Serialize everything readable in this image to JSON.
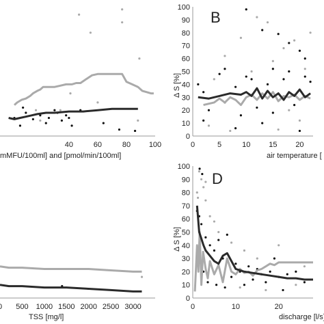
{
  "chart_data": [
    {
      "panel": "A",
      "type": "scatter",
      "panel_label": "",
      "xlabel": "mMFU/100ml] and [pmol/min/100ml]",
      "ylabel": "",
      "xticks": [
        40,
        60,
        80,
        100
      ],
      "xlim": [
        -8,
        100
      ],
      "ylim": [
        0,
        100
      ],
      "colors": {
        "gray": "#aaaaaa",
        "black": "#111111"
      },
      "series": [
        {
          "values_x": [
            2,
            4,
            7,
            10,
            13,
            15,
            18,
            20,
            22,
            26,
            30,
            34,
            38,
            42,
            45,
            48,
            52,
            56,
            60,
            63,
            66,
            70,
            74,
            77,
            80,
            84,
            88,
            91,
            94,
            97,
            99
          ],
          "values_y": [
            24,
            26,
            28,
            29,
            31,
            33,
            35,
            36,
            38,
            38,
            38,
            39,
            40,
            40,
            41,
            41,
            44,
            47,
            48,
            48,
            48,
            48,
            48,
            48,
            42,
            40,
            38,
            35,
            34,
            33,
            33
          ]
        },
        {
          "values_x": [
            -2,
            2,
            6,
            10,
            14,
            18,
            24,
            30,
            40,
            50,
            60,
            70,
            80,
            88
          ],
          "values_y": [
            14,
            13,
            14,
            15,
            16,
            17,
            18,
            18,
            19,
            19,
            20,
            21,
            21,
            21
          ]
        }
      ],
      "scatter_gray": [
        [
          55,
          80
        ],
        [
          47,
          94
        ],
        [
          77,
          98
        ],
        [
          77,
          88
        ],
        [
          89,
          60
        ],
        [
          41,
          33
        ],
        [
          60,
          26
        ],
        [
          34,
          20
        ],
        [
          88,
          12
        ],
        [
          17,
          20
        ],
        [
          20,
          12
        ]
      ],
      "scatter_black": [
        [
          2,
          14
        ],
        [
          6,
          8
        ],
        [
          8,
          22
        ],
        [
          10,
          18
        ],
        [
          15,
          13
        ],
        [
          20,
          16
        ],
        [
          24,
          10
        ],
        [
          26,
          14
        ],
        [
          30,
          20
        ],
        [
          32,
          18
        ],
        [
          35,
          12
        ],
        [
          38,
          16
        ],
        [
          40,
          14
        ],
        [
          42,
          8
        ],
        [
          48,
          20
        ],
        [
          64,
          10
        ],
        [
          75,
          5
        ],
        [
          86,
          4
        ]
      ]
    },
    {
      "panel": "B",
      "type": "scatter",
      "panel_label": "B",
      "xlabel": "air temperature [",
      "ylabel": "Δ S [%]",
      "xticks": [
        0,
        5,
        10,
        15,
        20
      ],
      "yticks": [
        0,
        10,
        20,
        30,
        40,
        50,
        60,
        70,
        80,
        90,
        100
      ],
      "xlim": [
        0,
        22.5
      ],
      "ylim": [
        0,
        100
      ],
      "colors": {
        "gray": "#aaaaaa",
        "black": "#111111"
      },
      "series": [
        {
          "values_x": [
            2,
            4,
            5,
            6,
            7,
            8,
            9,
            10,
            11,
            12,
            13,
            14,
            15,
            16,
            17,
            18,
            19,
            20,
            21,
            22
          ],
          "values_y": [
            24,
            26,
            29,
            26,
            30,
            28,
            24,
            30,
            32,
            28,
            33,
            29,
            34,
            27,
            31,
            30,
            32,
            28,
            31,
            29
          ]
        },
        {
          "values_x": [
            1,
            3,
            5,
            7,
            9,
            10,
            11,
            12,
            13,
            14,
            15,
            16,
            17,
            18,
            19,
            20,
            21,
            22
          ],
          "values_y": [
            30,
            29,
            31,
            33,
            32,
            34,
            31,
            37,
            29,
            35,
            30,
            33,
            28,
            34,
            31,
            36,
            30,
            33
          ]
        }
      ],
      "scatter_gray": [
        [
          3,
          8
        ],
        [
          6,
          62
        ],
        [
          9,
          76
        ],
        [
          14,
          88
        ],
        [
          17,
          68
        ],
        [
          19,
          74
        ],
        [
          12,
          92
        ],
        [
          16,
          5
        ],
        [
          20,
          12
        ],
        [
          22,
          80
        ],
        [
          7,
          4
        ],
        [
          11,
          50
        ],
        [
          18,
          20
        ],
        [
          21,
          52
        ],
        [
          4,
          44
        ],
        [
          15,
          58
        ]
      ],
      "scatter_black": [
        [
          10,
          98
        ],
        [
          13,
          82
        ],
        [
          16,
          79
        ],
        [
          18,
          72
        ],
        [
          20,
          66
        ],
        [
          21,
          60
        ],
        [
          1,
          40
        ],
        [
          2,
          34
        ],
        [
          3,
          20
        ],
        [
          5,
          48
        ],
        [
          6,
          26
        ],
        [
          8,
          38
        ],
        [
          9,
          16
        ],
        [
          11,
          44
        ],
        [
          12,
          22
        ],
        [
          14,
          40
        ],
        [
          15,
          18
        ],
        [
          17,
          44
        ],
        [
          19,
          24
        ],
        [
          22,
          42
        ],
        [
          8,
          6
        ],
        [
          13,
          10
        ],
        [
          20,
          4
        ],
        [
          2,
          12
        ],
        [
          6,
          52
        ],
        [
          10,
          46
        ],
        [
          15,
          52
        ],
        [
          18,
          50
        ],
        [
          21,
          46
        ]
      ]
    },
    {
      "panel": "C",
      "type": "scatter",
      "panel_label": "",
      "xlabel": "TSS [mg/l]",
      "ylabel": "",
      "xticks": [
        0,
        500,
        1000,
        1500,
        2000,
        2500,
        3000
      ],
      "xlim": [
        0,
        3500
      ],
      "ylim": [
        0,
        100
      ],
      "colors": {
        "gray": "#aaaaaa",
        "black": "#111111"
      },
      "series": [
        {
          "values_x": [
            0,
            200,
            500,
            1000,
            1500,
            2000,
            2500,
            3000,
            3200
          ],
          "values_y": [
            24,
            23,
            23,
            22,
            22,
            22,
            21,
            20,
            20
          ]
        },
        {
          "values_x": [
            0,
            200,
            500,
            1000,
            1500,
            2000,
            2500,
            3000,
            3200
          ],
          "values_y": [
            10,
            9,
            9,
            8,
            8,
            7,
            6,
            5,
            5
          ]
        }
      ],
      "scatter_gray": [
        [
          3200,
          16
        ]
      ],
      "scatter_black": [
        [
          1400,
          9
        ]
      ]
    },
    {
      "panel": "D",
      "type": "scatter",
      "panel_label": "D",
      "xlabel": "discharge [l/s]",
      "ylabel": "Δ S [%]",
      "xticks": [
        0,
        10,
        20
      ],
      "yticks": [
        0,
        10,
        20,
        30,
        40,
        50,
        60,
        70,
        80,
        90,
        100
      ],
      "xlim": [
        0,
        28
      ],
      "ylim": [
        0,
        100
      ],
      "colors": {
        "gray": "#aaaaaa",
        "black": "#111111"
      },
      "series": [
        {
          "values_x": [
            0.5,
            1,
            1.3,
            1.6,
            2,
            2.4,
            3,
            3.5,
            4,
            5,
            6,
            7,
            8,
            9,
            10,
            11,
            12,
            13,
            14,
            15,
            16,
            17,
            18,
            19,
            20,
            22,
            24,
            26,
            28
          ],
          "values_y": [
            5,
            40,
            20,
            50,
            10,
            35,
            22,
            15,
            28,
            18,
            25,
            12,
            30,
            20,
            18,
            22,
            19,
            20,
            17,
            21,
            22,
            24,
            26,
            25,
            27,
            27,
            27,
            27,
            27
          ]
        },
        {
          "values_x": [
            1,
            1.5,
            2,
            2.5,
            3,
            4,
            5,
            6,
            7,
            8,
            9,
            10,
            12,
            14,
            16,
            18,
            20,
            22,
            24,
            26,
            28
          ],
          "values_y": [
            70,
            50,
            45,
            40,
            36,
            32,
            28,
            26,
            32,
            34,
            28,
            22,
            20,
            19,
            18,
            17,
            16,
            15,
            15,
            14,
            14
          ]
        }
      ],
      "scatter_gray": [
        [
          1.5,
          96
        ],
        [
          2,
          90
        ],
        [
          2.5,
          84
        ],
        [
          1,
          80
        ],
        [
          3,
          74
        ],
        [
          5,
          58
        ],
        [
          6,
          50
        ],
        [
          9,
          42
        ],
        [
          12,
          36
        ],
        [
          15,
          30
        ],
        [
          20,
          40
        ],
        [
          24,
          10
        ],
        [
          3,
          88
        ],
        [
          1.2,
          76
        ],
        [
          4,
          62
        ],
        [
          8,
          28
        ],
        [
          11,
          8
        ],
        [
          17,
          6
        ],
        [
          26,
          24
        ]
      ],
      "scatter_black": [
        [
          1.6,
          98
        ],
        [
          2.2,
          94
        ],
        [
          1,
          66
        ],
        [
          1.5,
          62
        ],
        [
          2,
          56
        ],
        [
          3,
          46
        ],
        [
          4,
          40
        ],
        [
          5,
          36
        ],
        [
          6,
          44
        ],
        [
          7,
          30
        ],
        [
          8,
          48
        ],
        [
          9,
          16
        ],
        [
          10,
          26
        ],
        [
          11,
          20
        ],
        [
          12,
          10
        ],
        [
          13,
          24
        ],
        [
          14,
          14
        ],
        [
          15,
          22
        ],
        [
          16,
          18
        ],
        [
          17,
          12
        ],
        [
          18,
          20
        ],
        [
          19,
          30
        ],
        [
          20,
          16
        ],
        [
          21,
          6
        ],
        [
          22,
          18
        ],
        [
          24,
          20
        ],
        [
          26,
          12
        ],
        [
          2.5,
          20
        ],
        [
          3.5,
          12
        ],
        [
          5.5,
          10
        ],
        [
          7.5,
          8
        ]
      ]
    }
  ]
}
